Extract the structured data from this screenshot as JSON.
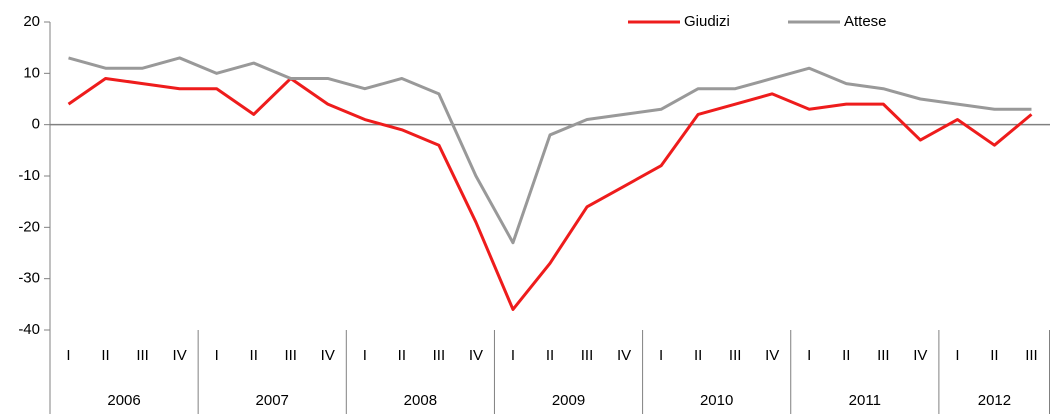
{
  "chart_data": {
    "type": "line",
    "categories": [
      "I",
      "II",
      "III",
      "IV",
      "I",
      "II",
      "III",
      "IV",
      "I",
      "II",
      "III",
      "IV",
      "I",
      "II",
      "III",
      "IV",
      "I",
      "II",
      "III",
      "IV",
      "I",
      "II",
      "III",
      "IV",
      "I",
      "II",
      "III"
    ],
    "years": [
      "2006",
      "2007",
      "2008",
      "2009",
      "2010",
      "2011",
      "2012"
    ],
    "series": [
      {
        "name": "Giudizi",
        "color": "#ee1c1c",
        "values": [
          4,
          9,
          8,
          7,
          7,
          2,
          9,
          4,
          1,
          -1,
          -4,
          -19,
          -36,
          -27,
          -16,
          -12,
          -8,
          2,
          4,
          6,
          3,
          4,
          4,
          -3,
          1,
          -4,
          2
        ]
      },
      {
        "name": "Attese",
        "color": "#999999",
        "values": [
          13,
          11,
          11,
          13,
          10,
          12,
          9,
          9,
          7,
          9,
          6,
          -10,
          -23,
          -2,
          1,
          2,
          3,
          7,
          7,
          9,
          11,
          8,
          7,
          5,
          4,
          3,
          3
        ]
      }
    ],
    "ylim": [
      -40,
      20
    ],
    "yticks": [
      20,
      10,
      0,
      -10,
      -20,
      -30,
      -40
    ],
    "grid": false,
    "legend": "top"
  }
}
